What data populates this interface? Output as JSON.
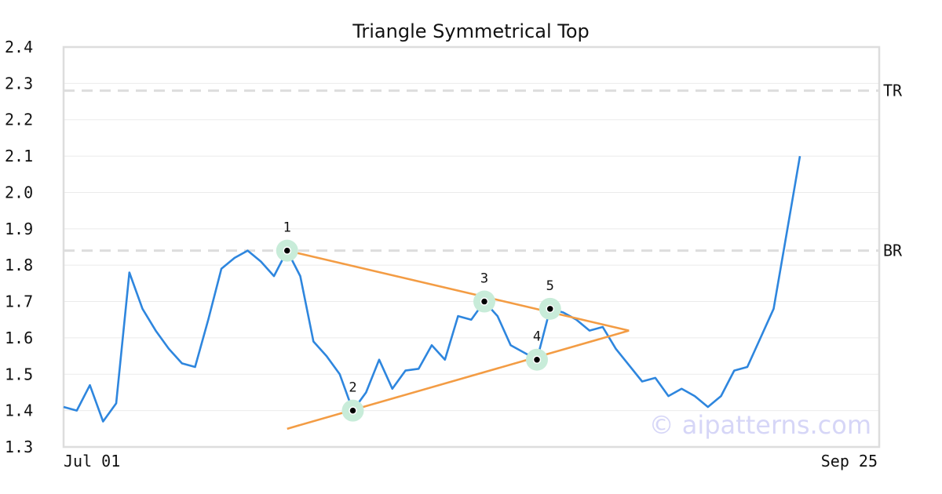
{
  "chart_data": {
    "type": "line",
    "title": "Triangle Symmetrical Top",
    "xlabel": "",
    "ylabel": "",
    "x_tick_labels": [
      "Jul 01",
      "Sep 25"
    ],
    "ylim": [
      1.3,
      2.4
    ],
    "y_ticks": [
      "1.3",
      "1.4",
      "1.5",
      "1.6",
      "1.7",
      "1.8",
      "1.9",
      "2.0",
      "2.1",
      "2.2",
      "2.3",
      "2.4"
    ],
    "grid": true,
    "series": [
      {
        "color": "#2e86de",
        "points": [
          [
            0,
            1.41
          ],
          [
            1,
            1.4
          ],
          [
            2,
            1.47
          ],
          [
            3,
            1.37
          ],
          [
            4,
            1.42
          ],
          [
            5,
            1.78
          ],
          [
            6,
            1.68
          ],
          [
            7,
            1.62
          ],
          [
            8,
            1.57
          ],
          [
            9,
            1.53
          ],
          [
            10,
            1.52
          ],
          [
            11,
            1.65
          ],
          [
            12,
            1.79
          ],
          [
            13,
            1.82
          ],
          [
            14,
            1.84
          ],
          [
            15,
            1.81
          ],
          [
            16,
            1.77
          ],
          [
            17,
            1.84
          ],
          [
            18,
            1.77
          ],
          [
            19,
            1.59
          ],
          [
            20,
            1.55
          ],
          [
            21,
            1.5
          ],
          [
            22,
            1.4
          ],
          [
            23,
            1.45
          ],
          [
            24,
            1.54
          ],
          [
            25,
            1.46
          ],
          [
            26,
            1.51
          ],
          [
            27,
            1.515
          ],
          [
            28,
            1.58
          ],
          [
            29,
            1.54
          ],
          [
            30,
            1.66
          ],
          [
            31,
            1.65
          ],
          [
            32,
            1.7
          ],
          [
            33,
            1.66
          ],
          [
            34,
            1.58
          ],
          [
            35,
            1.56
          ],
          [
            36,
            1.54
          ],
          [
            37,
            1.68
          ],
          [
            38,
            1.67
          ],
          [
            39,
            1.65
          ],
          [
            40,
            1.62
          ],
          [
            41,
            1.63
          ],
          [
            42,
            1.57
          ],
          [
            43,
            1.525
          ],
          [
            44,
            1.48
          ],
          [
            45,
            1.49
          ],
          [
            46,
            1.44
          ],
          [
            47,
            1.46
          ],
          [
            48,
            1.44
          ],
          [
            49,
            1.41
          ],
          [
            50,
            1.44
          ],
          [
            51,
            1.51
          ],
          [
            52,
            1.52
          ],
          [
            53,
            1.6
          ],
          [
            54,
            1.68
          ],
          [
            55,
            1.89
          ],
          [
            56,
            2.1
          ]
        ]
      }
    ],
    "reference_lines": [
      {
        "label": "TR",
        "value": 2.28,
        "color": "#dddddd"
      },
      {
        "label": "BR",
        "value": 1.84,
        "color": "#dddddd"
      }
    ],
    "pattern_lines": [
      {
        "color": "#f39c44",
        "from": [
          17,
          1.84
        ],
        "to": [
          43,
          1.62
        ]
      },
      {
        "color": "#f39c44",
        "from": [
          17,
          1.35
        ],
        "to": [
          43,
          1.62
        ]
      }
    ],
    "marked_points": [
      {
        "label": "1",
        "x": 17,
        "y": 1.84,
        "label_side": "above"
      },
      {
        "label": "2",
        "x": 22,
        "y": 1.4,
        "label_side": "above"
      },
      {
        "label": "3",
        "x": 32,
        "y": 1.7,
        "label_side": "above"
      },
      {
        "label": "4",
        "x": 36,
        "y": 1.54,
        "label_side": "above"
      },
      {
        "label": "5",
        "x": 37,
        "y": 1.68,
        "label_side": "above"
      }
    ],
    "marker_halo_color": "#c8ecd9",
    "watermark": "© aipatterns.com",
    "watermark_color": "#d6d6f7"
  }
}
